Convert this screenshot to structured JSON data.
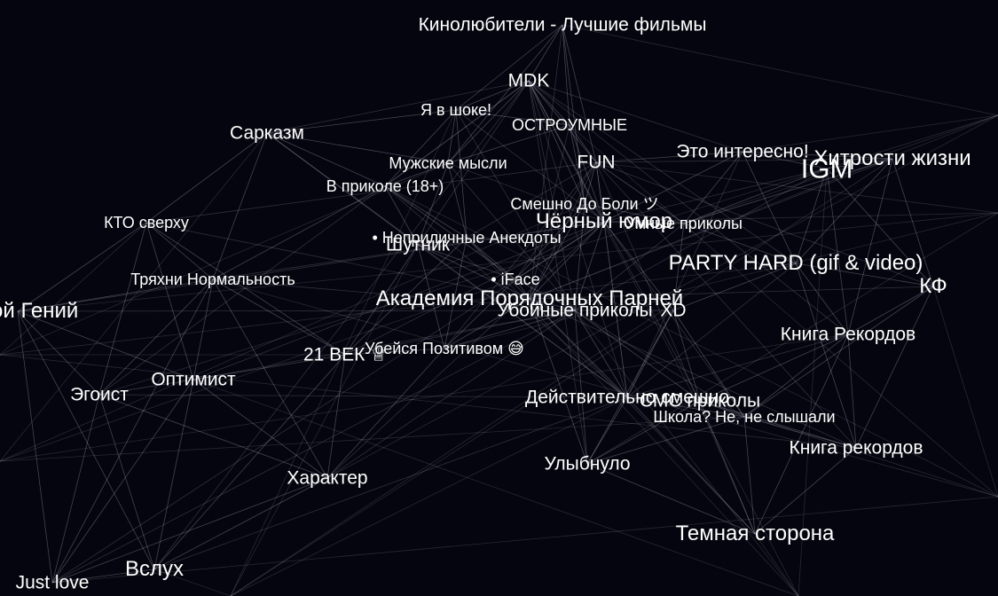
{
  "colors": {
    "background": "#05050f",
    "node_label": "#ffffff",
    "edge": "#c8c8dc"
  },
  "nodes": {
    "kinolyubiteli": "Кинолюбители - Лучшие фильмы",
    "mdk": "MDK",
    "ya_v_shoke": "Я в шоке!",
    "ostroumnye": "ОСТРОУМНЫЕ",
    "sarkazm": "Сарказм",
    "muzhskie_mysli": "Мужские мысли",
    "fun": "FUN",
    "eto_interesno": "Это интересно!",
    "igm": "IGM",
    "hitrosti_zhizni": "Хитрости жизни",
    "v_prikole": "В приколе (18+)",
    "smeshno_do_boli": "Смешно До Боли ツ",
    "kto_sverhu": "КТО сверху",
    "chernyi_yumor": "Чёрный юмор",
    "umnye_prikoly": "Умные приколы",
    "neprilichnye_anekdoty": "• Неприличные Анекдоты",
    "shutnik": "Шутник",
    "tryahni": "Тряхни Нормальность",
    "iface": "• iFace",
    "party_hard": "PARTY HARD (gif & video)",
    "tupoi_genii": "Тупой Гений",
    "akademiya": "Академия Порядочных Парней",
    "ubojnye_prikoly": "Убойные приколы",
    "xd": "XD",
    "kf": "КФ",
    "kniga_rekordov_1": "Книга Рекордов",
    "vek21": "21 ВЕК ♕",
    "ubeisya_pozitivom": "Убейся Позитивом 😅",
    "egoist": "Эгоист",
    "optimist": "Оптимист",
    "deistvitelno_smeshno": "Действительно смешно",
    "smc_prikoly": "СМС приколы",
    "shkola": "Школа? Не, не слышали",
    "kniga_rekordov_2": "Книга рекордов",
    "ulybnulo": "Улыбнуло",
    "harakter": "Характер",
    "temnaya_storona": "Темная сторона",
    "vsluh": "Вслух",
    "just_love": "Just love"
  }
}
